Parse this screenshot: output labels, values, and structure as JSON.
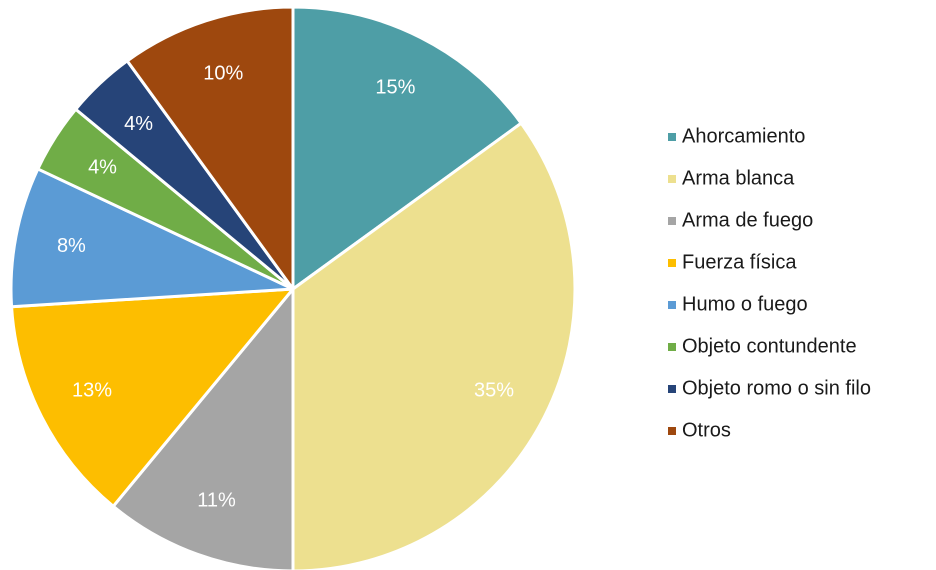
{
  "chart_data": {
    "type": "pie",
    "categories": [
      "Ahorcamiento",
      "Arma blanca",
      "Arma de fuego",
      "Fuerza física",
      "Humo o fuego",
      "Objeto contundente",
      "Objeto romo o sin filo",
      "Otros"
    ],
    "values": [
      15,
      35,
      11,
      13,
      8,
      4,
      4,
      10
    ],
    "value_labels": [
      "15%",
      "35%",
      "11%",
      "13%",
      "8%",
      "4%",
      "4%",
      "10%"
    ],
    "colors": [
      "#4e9ea6",
      "#ede08f",
      "#a5a5a5",
      "#fdbe00",
      "#5b9bd5",
      "#70ad47",
      "#264478",
      "#9e480e"
    ],
    "legend": "right"
  }
}
